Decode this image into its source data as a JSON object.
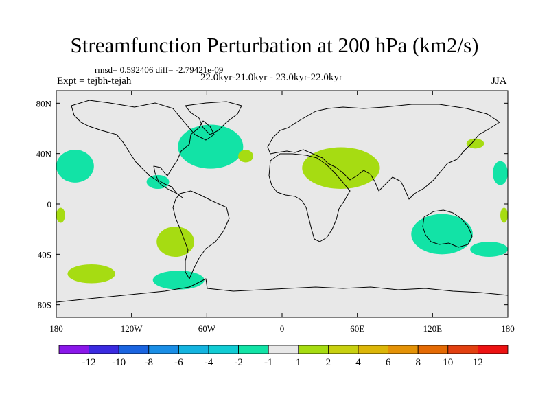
{
  "chart_data": {
    "type": "heatmap",
    "title": "Streamfunction Perturbation at 200 hPa (km2/s)",
    "stats_line": "rmsd= 0.592406  diff= -2.79421e-09",
    "left_label": "Expt = tejbh-tejah",
    "center_label": "22.0kyr-21.0kyr - 23.0kyr-22.0kyr",
    "right_label": "JJA",
    "projection": "cylindrical equidistant",
    "xlim": [
      -180,
      180
    ],
    "ylim": [
      -90,
      90
    ],
    "x_ticks": [
      {
        "value": -180,
        "label": "180"
      },
      {
        "value": -120,
        "label": "120W"
      },
      {
        "value": -60,
        "label": "60W"
      },
      {
        "value": 0,
        "label": "0"
      },
      {
        "value": 60,
        "label": "60E"
      },
      {
        "value": 120,
        "label": "120E"
      },
      {
        "value": 180,
        "label": "180"
      }
    ],
    "y_ticks": [
      {
        "value": 80,
        "label": "80N"
      },
      {
        "value": 40,
        "label": "40N"
      },
      {
        "value": 0,
        "label": "0"
      },
      {
        "value": -40,
        "label": "40S"
      },
      {
        "value": -80,
        "label": "80S"
      }
    ],
    "colorbar": {
      "colors": [
        "#8a17ea",
        "#3a2ae0",
        "#1a64e0",
        "#1a8ee6",
        "#14b4e0",
        "#11ccd4",
        "#12e3a6",
        "#e8e8e8",
        "#a6dc12",
        "#c8d010",
        "#dcb608",
        "#e49206",
        "#e46a04",
        "#e24010",
        "#ec1212"
      ],
      "boundaries": [
        "-12",
        "-10",
        "-8",
        "-6",
        "-4",
        "-2",
        "-1",
        "1",
        "2",
        "4",
        "6",
        "8",
        "10",
        "12"
      ]
    },
    "regions": [
      {
        "name": "north-atlantic",
        "class": "-2 to -1",
        "color": "#12e3a6",
        "lon": [
          -83,
          -31
        ],
        "lat": [
          28,
          63
        ]
      },
      {
        "name": "north-pacific-east",
        "class": "-2 to -1",
        "color": "#12e3a6",
        "lon": [
          -180,
          -150
        ],
        "lat": [
          17,
          43
        ]
      },
      {
        "name": "central-america",
        "class": "-2 to -1",
        "color": "#12e3a6",
        "lon": [
          -108,
          -90
        ],
        "lat": [
          12,
          23
        ]
      },
      {
        "name": "east-of-japan",
        "class": "1 to 2",
        "color": "#a6dc12",
        "lon": [
          147,
          161
        ],
        "lat": [
          44,
          52
        ]
      },
      {
        "name": "mid-atlantic",
        "class": "1 to 2",
        "color": "#a6dc12",
        "lon": [
          -35,
          -23
        ],
        "lat": [
          33,
          43
        ]
      },
      {
        "name": "mediterranean-middle-east",
        "class": "1 to 2",
        "color": "#a6dc12",
        "lon": [
          16,
          78
        ],
        "lat": [
          12,
          45
        ]
      },
      {
        "name": "west-pacific-dateline",
        "class": "-2 to -1",
        "color": "#12e3a6",
        "lon": [
          168,
          180
        ],
        "lat": [
          15,
          34
        ]
      },
      {
        "name": "equatorial-dateline-west",
        "class": "1 to 2",
        "color": "#a6dc12",
        "lon": [
          -180,
          -173
        ],
        "lat": [
          -15,
          -3
        ]
      },
      {
        "name": "equatorial-dateline-east",
        "class": "1 to 2",
        "color": "#a6dc12",
        "lon": [
          174,
          180
        ],
        "lat": [
          -15,
          -3
        ]
      },
      {
        "name": "southeast-pacific",
        "class": "1 to 2",
        "color": "#a6dc12",
        "lon": [
          -100,
          -70
        ],
        "lat": [
          -42,
          -18
        ]
      },
      {
        "name": "south-pacific",
        "class": "1 to 2",
        "color": "#a6dc12",
        "lon": [
          -171,
          -133
        ],
        "lat": [
          -63,
          -48
        ]
      },
      {
        "name": "drake-passage",
        "class": "-2 to -1",
        "color": "#12e3a6",
        "lon": [
          -103,
          -62
        ],
        "lat": [
          -68,
          -53
        ]
      },
      {
        "name": "australia",
        "class": "-2 to -1",
        "color": "#12e3a6",
        "lon": [
          103,
          152
        ],
        "lat": [
          -40,
          -8
        ]
      },
      {
        "name": "tasman-sea",
        "class": "-2 to -1",
        "color": "#12e3a6",
        "lon": [
          150,
          180
        ],
        "lat": [
          -42,
          -30
        ]
      }
    ]
  }
}
